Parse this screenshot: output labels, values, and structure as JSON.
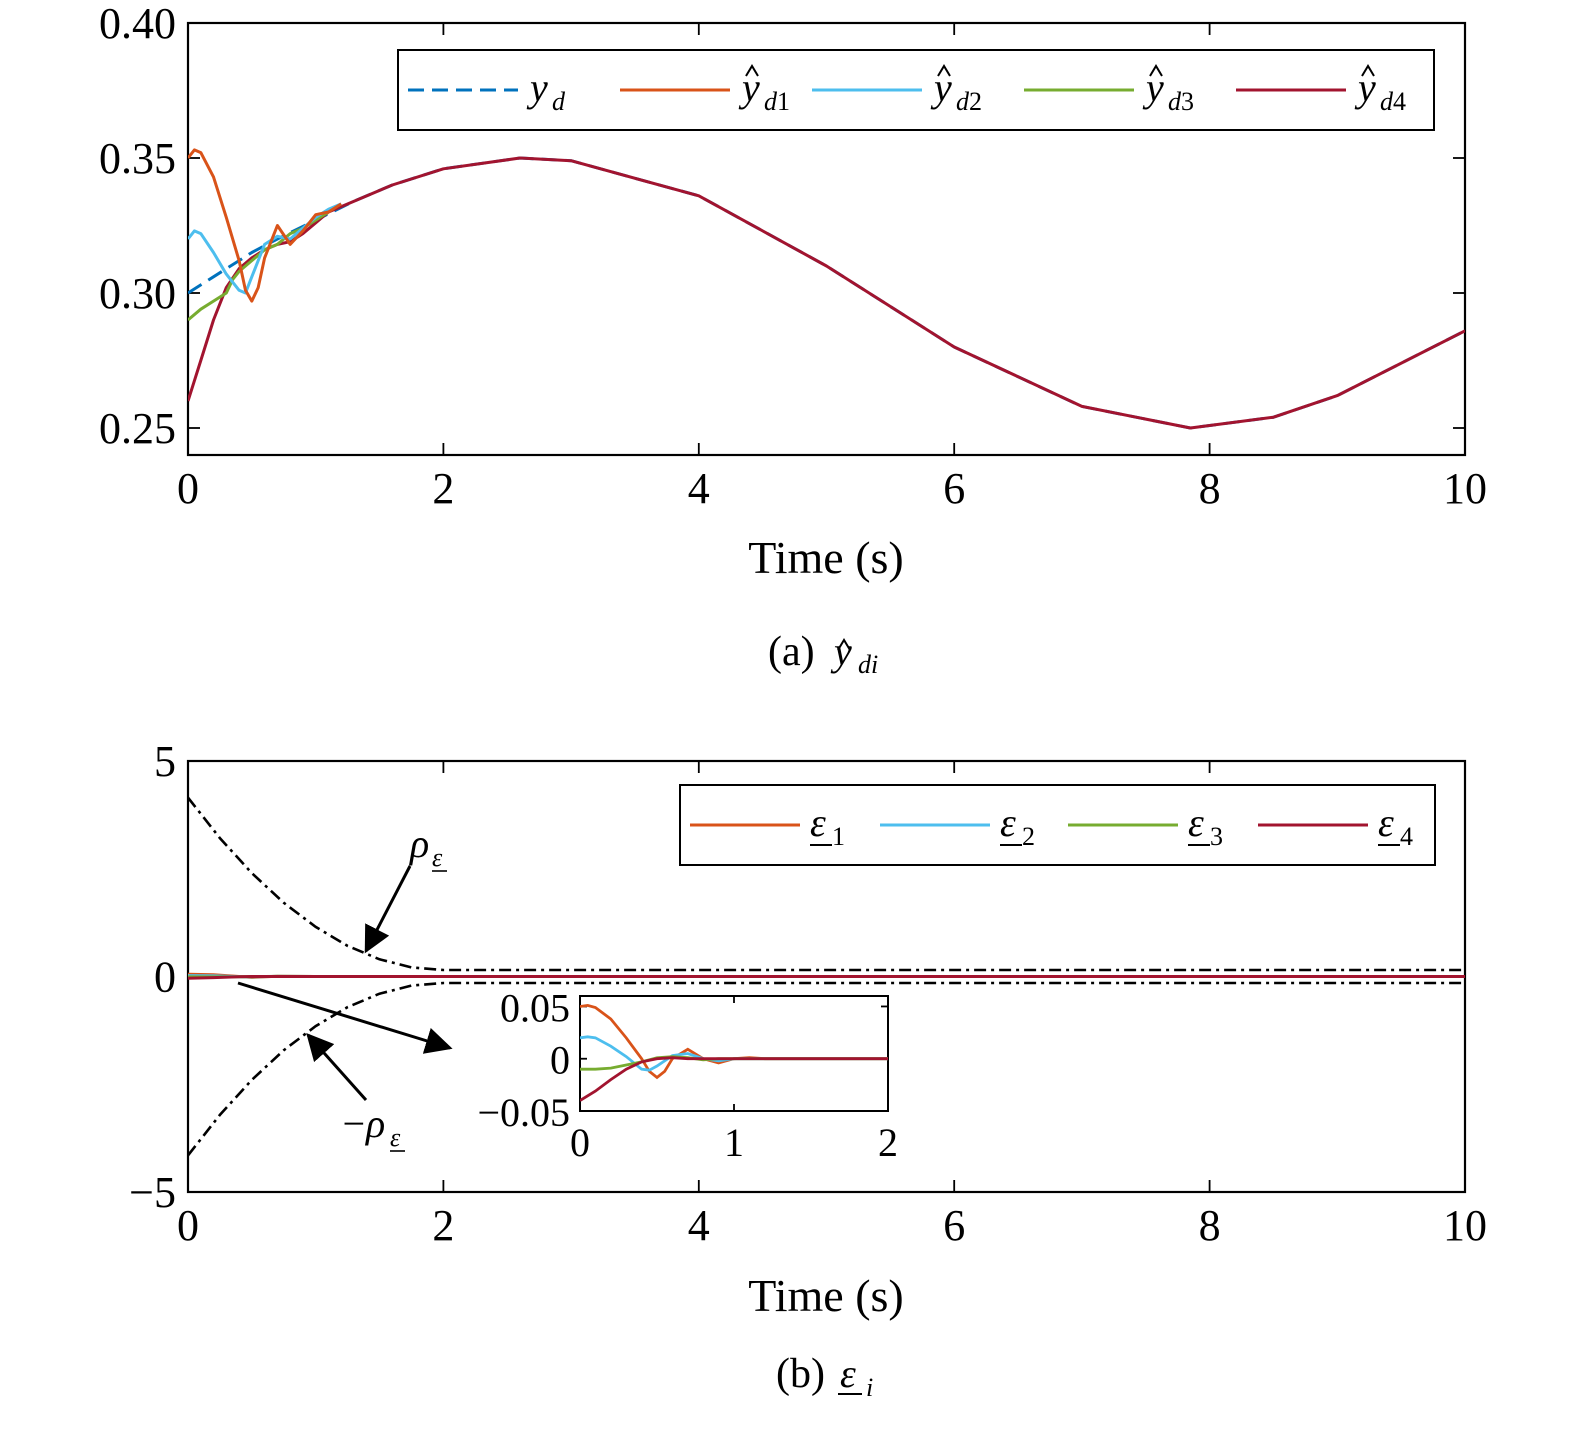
{
  "chart_data": [
    {
      "type": "line",
      "caption": "(a) ŷdi",
      "caption_prefix": "(a)",
      "caption_symbol": "y",
      "caption_sub": "di",
      "xlabel": "Time (s)",
      "ylabel": "",
      "xlim": [
        0,
        10
      ],
      "ylim": [
        0.24,
        0.4
      ],
      "xticks": [
        "0",
        "2",
        "4",
        "6",
        "8",
        "10"
      ],
      "yticks": [
        "0.25",
        "0.30",
        "0.35",
        "0.40"
      ],
      "legend_position": "top-right",
      "series": [
        {
          "name": "yd",
          "symbol": "y",
          "sub": "d",
          "hat": false,
          "color": "#0072BD",
          "dash": "dashed",
          "x": [
            0,
            0.1,
            0.2,
            0.3,
            0.4,
            0.5,
            0.7,
            1.0,
            1.3,
            1.6,
            2.0,
            2.6,
            3.0,
            4.0,
            5.0,
            6.0,
            7.0,
            7.85,
            8.5,
            9.0,
            10.0
          ],
          "y": [
            0.3,
            0.303,
            0.306,
            0.309,
            0.312,
            0.315,
            0.32,
            0.327,
            0.334,
            0.34,
            0.346,
            0.35,
            0.349,
            0.336,
            0.31,
            0.28,
            0.258,
            0.25,
            0.254,
            0.262,
            0.286
          ]
        },
        {
          "name": "ŷd1",
          "symbol": "y",
          "sub": "d1",
          "hat": true,
          "color": "#D95319",
          "dash": "solid",
          "x": [
            0,
            0.05,
            0.1,
            0.2,
            0.3,
            0.4,
            0.45,
            0.5,
            0.55,
            0.6,
            0.7,
            0.8,
            0.9,
            1.0,
            1.1,
            1.2
          ],
          "y": [
            0.35,
            0.353,
            0.352,
            0.343,
            0.328,
            0.312,
            0.301,
            0.297,
            0.302,
            0.313,
            0.325,
            0.318,
            0.323,
            0.329,
            0.33,
            0.333
          ]
        },
        {
          "name": "ŷd2",
          "symbol": "y",
          "sub": "d2",
          "hat": true,
          "color": "#4DBEEE",
          "dash": "solid",
          "x": [
            0,
            0.05,
            0.1,
            0.2,
            0.3,
            0.4,
            0.45,
            0.5,
            0.6,
            0.7,
            0.8,
            0.9,
            1.0,
            1.1,
            1.2
          ],
          "y": [
            0.32,
            0.323,
            0.322,
            0.315,
            0.307,
            0.301,
            0.3,
            0.306,
            0.318,
            0.321,
            0.32,
            0.324,
            0.328,
            0.331,
            0.333
          ]
        },
        {
          "name": "ŷd3",
          "symbol": "y",
          "sub": "d3",
          "hat": true,
          "color": "#77AC30",
          "dash": "solid",
          "x": [
            0,
            0.1,
            0.2,
            0.3,
            0.35,
            0.4,
            0.5,
            0.6,
            0.7,
            0.8,
            0.9,
            1.0,
            1.1
          ],
          "y": [
            0.29,
            0.294,
            0.297,
            0.3,
            0.305,
            0.308,
            0.312,
            0.316,
            0.318,
            0.322,
            0.324,
            0.327,
            0.33
          ]
        },
        {
          "name": "ŷd4",
          "symbol": "y",
          "sub": "d4",
          "hat": true,
          "color": "#A2142F",
          "dash": "solid",
          "x": [
            0,
            0.1,
            0.2,
            0.3,
            0.4,
            0.5,
            0.6,
            0.7,
            0.8,
            0.9,
            1.0,
            1.1,
            1.3,
            1.6,
            2.0,
            2.6,
            3.0,
            4.0,
            5.0,
            6.0,
            7.0,
            7.85,
            8.5,
            9.0,
            10.0
          ],
          "y": [
            0.26,
            0.275,
            0.29,
            0.302,
            0.309,
            0.313,
            0.316,
            0.318,
            0.319,
            0.322,
            0.326,
            0.33,
            0.334,
            0.34,
            0.346,
            0.35,
            0.349,
            0.336,
            0.31,
            0.28,
            0.258,
            0.25,
            0.254,
            0.262,
            0.286
          ]
        }
      ]
    },
    {
      "type": "line",
      "caption": "(b) ε̲i",
      "caption_prefix": "(b)",
      "caption_symbol": "ε",
      "caption_sub": "i",
      "xlabel": "Time (s)",
      "ylabel": "",
      "xlim": [
        0,
        10
      ],
      "ylim": [
        -5,
        5
      ],
      "xticks": [
        "0",
        "2",
        "4",
        "6",
        "8",
        "10"
      ],
      "yticks": [
        "−5",
        "0",
        "5"
      ],
      "legend_position": "top-right",
      "series": [
        {
          "name": "ε1",
          "symbol": "ε",
          "sub": "1",
          "color": "#D95319",
          "x": [
            0,
            0.2,
            0.5,
            0.7,
            1.0,
            10.0
          ],
          "y": [
            0.05,
            0.04,
            -0.02,
            0.005,
            0,
            0
          ]
        },
        {
          "name": "ε2",
          "symbol": "ε",
          "sub": "2",
          "color": "#4DBEEE",
          "x": [
            0,
            0.2,
            0.45,
            0.7,
            1.0,
            10.0
          ],
          "y": [
            0.02,
            0.015,
            -0.01,
            0.003,
            0,
            0
          ]
        },
        {
          "name": "ε3",
          "symbol": "ε",
          "sub": "3",
          "color": "#77AC30",
          "x": [
            0,
            0.2,
            0.4,
            0.7,
            1.0,
            10.0
          ],
          "y": [
            -0.01,
            -0.01,
            -0.005,
            0.003,
            0,
            0
          ]
        },
        {
          "name": "ε4",
          "symbol": "ε",
          "sub": "4",
          "color": "#A2142F",
          "x": [
            0,
            0.2,
            0.4,
            0.5,
            0.7,
            1.0,
            10.0
          ],
          "y": [
            -0.04,
            -0.025,
            -0.005,
            0.0,
            0.0,
            0,
            0
          ]
        }
      ],
      "bounds": {
        "upper_label": "ρε",
        "lower_label": "−ρε",
        "upper_prefix": "",
        "lower_prefix": "−",
        "symbol": "ρ",
        "sub": "ε",
        "color": "#000000",
        "x": [
          0,
          0.25,
          0.5,
          0.75,
          1.0,
          1.25,
          1.5,
          1.75,
          2.0,
          2.25,
          2.5,
          3.0,
          4.0,
          10.0
        ],
        "upper": [
          4.0,
          3.06,
          2.25,
          1.56,
          1.0,
          0.56,
          0.25,
          0.06,
          0.0,
          0.0,
          0.0,
          0.0,
          0.0,
          0.0
        ],
        "floor": 0.15
      },
      "annotations": [
        {
          "target": "upper_bound",
          "x": 1.4,
          "y": 0.5
        },
        {
          "target": "lower_bound",
          "x": 0.95,
          "y": -1.5
        },
        {
          "target": "inset",
          "x": 2.1,
          "y": -1.7
        }
      ],
      "inset": {
        "xlim": [
          0,
          2
        ],
        "ylim": [
          -0.05,
          0.06
        ],
        "xticks": [
          "0",
          "1",
          "2"
        ],
        "yticks": [
          "0.05",
          "0",
          "−0.05"
        ],
        "series": [
          {
            "name": "ε1",
            "color": "#D95319",
            "x": [
              0,
              0.05,
              0.1,
              0.2,
              0.3,
              0.4,
              0.45,
              0.5,
              0.55,
              0.6,
              0.7,
              0.8,
              0.9,
              1.0,
              1.1,
              1.2,
              2.0
            ],
            "y": [
              0.05,
              0.051,
              0.049,
              0.038,
              0.02,
              0.0,
              -0.012,
              -0.018,
              -0.012,
              0.0,
              0.009,
              0.0,
              -0.004,
              0.0,
              0.001,
              0.0,
              0.0
            ]
          },
          {
            "name": "ε2",
            "color": "#4DBEEE",
            "x": [
              0,
              0.05,
              0.1,
              0.2,
              0.3,
              0.4,
              0.45,
              0.5,
              0.6,
              0.7,
              0.8,
              0.9,
              1.0,
              1.2,
              2.0
            ],
            "y": [
              0.02,
              0.021,
              0.02,
              0.012,
              0.002,
              -0.01,
              -0.011,
              -0.007,
              0.003,
              0.005,
              0.0,
              -0.002,
              0.0,
              0.0,
              0.0
            ]
          },
          {
            "name": "ε3",
            "color": "#77AC30",
            "x": [
              0,
              0.1,
              0.2,
              0.3,
              0.4,
              0.5,
              0.6,
              0.7,
              0.8,
              0.9,
              1.0,
              2.0
            ],
            "y": [
              -0.01,
              -0.01,
              -0.009,
              -0.006,
              -0.003,
              0.001,
              0.002,
              0.001,
              -0.001,
              0.0,
              0.0,
              0.0
            ]
          },
          {
            "name": "ε4",
            "color": "#A2142F",
            "x": [
              0,
              0.1,
              0.2,
              0.3,
              0.4,
              0.5,
              0.6,
              0.7,
              0.8,
              1.0,
              2.0
            ],
            "y": [
              -0.04,
              -0.031,
              -0.02,
              -0.01,
              -0.003,
              0.0,
              0.001,
              0.0,
              0.0,
              0.0,
              0.0
            ]
          }
        ]
      }
    }
  ]
}
